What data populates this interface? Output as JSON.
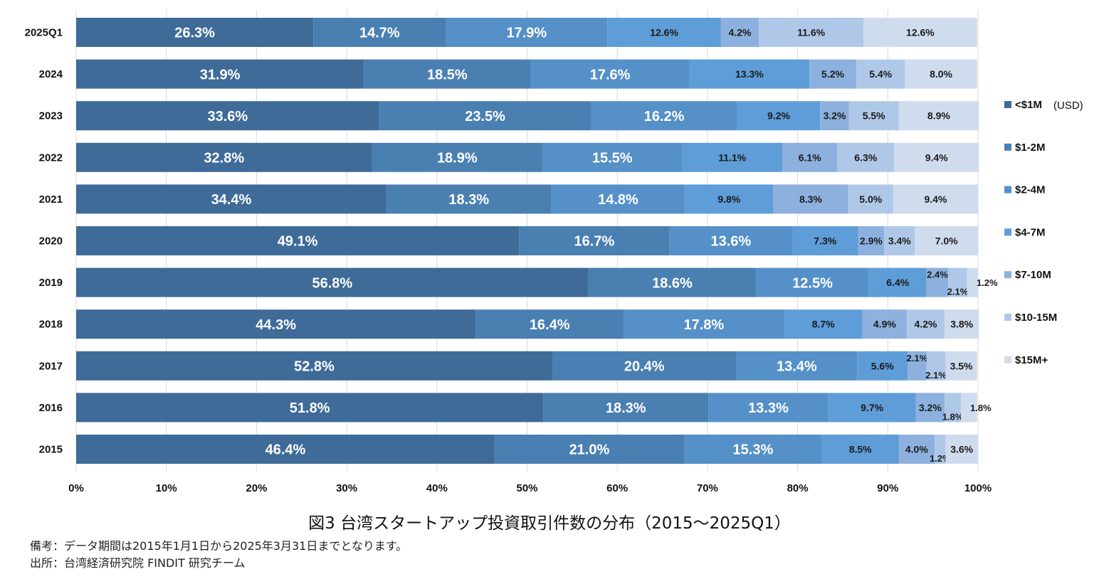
{
  "chart_data": {
    "type": "bar",
    "orientation": "horizontal",
    "stacked": "100%",
    "categories": [
      "2025Q1",
      "2024",
      "2023",
      "2022",
      "2021",
      "2020",
      "2019",
      "2018",
      "2017",
      "2016",
      "2015"
    ],
    "series": [
      {
        "name": "<$1M",
        "color": "#3e6b98",
        "values": [
          26.3,
          31.9,
          33.6,
          32.8,
          34.4,
          49.1,
          56.8,
          44.3,
          52.8,
          51.8,
          46.4
        ]
      },
      {
        "name": "$1-2M",
        "color": "#4a7fb2",
        "values": [
          14.7,
          18.5,
          23.5,
          18.9,
          18.3,
          16.7,
          18.6,
          16.4,
          20.4,
          18.3,
          21.0
        ]
      },
      {
        "name": "$2-4M",
        "color": "#5590c8",
        "values": [
          17.9,
          17.6,
          16.2,
          15.5,
          14.8,
          13.6,
          12.5,
          17.8,
          13.4,
          13.3,
          15.3
        ]
      },
      {
        "name": "$4-7M",
        "color": "#5e9dd8",
        "values": [
          12.6,
          13.3,
          9.2,
          11.1,
          9.8,
          7.3,
          6.4,
          8.7,
          5.6,
          9.7,
          8.5
        ]
      },
      {
        "name": "$7-10M",
        "color": "#8db1de",
        "values": [
          4.2,
          5.2,
          3.2,
          6.1,
          8.3,
          2.9,
          2.4,
          4.9,
          2.1,
          3.2,
          4.0
        ]
      },
      {
        "name": "$10-15M",
        "color": "#b0c8e8",
        "values": [
          11.6,
          5.4,
          5.5,
          6.3,
          5.0,
          3.4,
          2.1,
          4.2,
          2.1,
          1.8,
          1.2
        ]
      },
      {
        "name": "$15M+",
        "color": "#cfdcee",
        "values": [
          12.6,
          8.0,
          8.9,
          9.4,
          9.4,
          7.0,
          1.2,
          3.8,
          3.5,
          1.8,
          3.6
        ]
      }
    ],
    "legend_unit": "(USD)",
    "xlim": [
      0,
      100
    ],
    "x_ticks": [
      "0%",
      "10%",
      "20%",
      "30%",
      "40%",
      "50%",
      "60%",
      "70%",
      "80%",
      "90%",
      "100%"
    ],
    "legend_position": "right",
    "grid": "vertical"
  },
  "caption": "図3 台湾スタートアップ投資取引件数の分布（2015～2025Q1）",
  "note_remark": "備考：データ期間は2015年1月1日から2025年3月31日までとなります。",
  "note_source": "出所：台湾経済研究院 FINDIT 研究チーム"
}
